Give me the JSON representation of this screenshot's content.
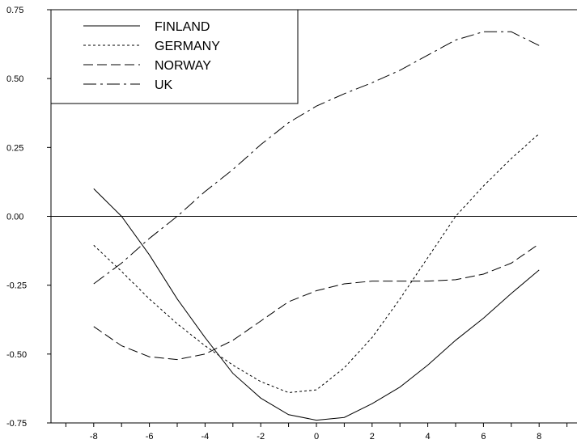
{
  "chart_data": {
    "type": "line",
    "xlim": [
      -9.4,
      9.4
    ],
    "ylim": [
      -0.75,
      0.75
    ],
    "xticks": [
      -8,
      -6,
      -4,
      -2,
      0,
      2,
      4,
      6,
      8
    ],
    "yticks": [
      0.75,
      0.5,
      0.25,
      0.0,
      -0.25,
      -0.5,
      -0.75
    ],
    "ytick_labels": [
      "0.75",
      "0.50",
      "0.25",
      "0.00",
      "-0.25",
      "-0.50",
      "-0.75"
    ],
    "zero_line": true,
    "grid": false,
    "legend_position": "top-left",
    "series": [
      {
        "name": "FINLAND",
        "dash": "solid",
        "x": [
          -8,
          -7,
          -6,
          -5,
          -4,
          -3,
          -2,
          -1,
          0,
          1,
          2,
          3,
          4,
          5,
          6,
          7,
          8
        ],
        "y": [
          0.1,
          0.0,
          -0.14,
          -0.3,
          -0.44,
          -0.57,
          -0.66,
          -0.72,
          -0.74,
          -0.73,
          -0.68,
          -0.62,
          -0.54,
          -0.45,
          -0.37,
          -0.28,
          -0.195
        ]
      },
      {
        "name": "GERMANY",
        "dash": "short-dash",
        "x": [
          -8,
          -7,
          -6,
          -5,
          -4,
          -3,
          -2,
          -1,
          0,
          1,
          2,
          3,
          4,
          5,
          6,
          7,
          8
        ],
        "y": [
          -0.105,
          -0.2,
          -0.3,
          -0.39,
          -0.47,
          -0.54,
          -0.6,
          -0.64,
          -0.63,
          -0.55,
          -0.44,
          -0.3,
          -0.15,
          0.0,
          0.11,
          0.21,
          0.3
        ]
      },
      {
        "name": "NORWAY",
        "dash": "long-dash",
        "x": [
          -8,
          -7,
          -6,
          -5,
          -4,
          -3,
          -2,
          -1,
          0,
          1,
          2,
          3,
          4,
          5,
          6,
          7,
          8
        ],
        "y": [
          -0.4,
          -0.47,
          -0.51,
          -0.52,
          -0.5,
          -0.45,
          -0.38,
          -0.31,
          -0.27,
          -0.245,
          -0.235,
          -0.235,
          -0.235,
          -0.23,
          -0.21,
          -0.17,
          -0.1
        ]
      },
      {
        "name": "UK",
        "dash": "dash-dot",
        "x": [
          -8,
          -7,
          -6,
          -5,
          -4,
          -3,
          -2,
          -1,
          0,
          1,
          2,
          3,
          4,
          5,
          6,
          7,
          8
        ],
        "y": [
          -0.245,
          -0.17,
          -0.08,
          0.0,
          0.09,
          0.17,
          0.26,
          0.34,
          0.4,
          0.445,
          0.485,
          0.53,
          0.585,
          0.64,
          0.67,
          0.67,
          0.62
        ]
      }
    ]
  }
}
